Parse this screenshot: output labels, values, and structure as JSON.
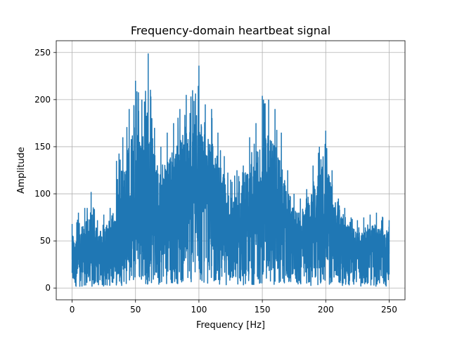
{
  "chart_data": {
    "type": "line",
    "title": "Frequency-domain heartbeat signal",
    "xlabel": "Frequency [Hz]",
    "ylabel": "Amplitude",
    "xlim": [
      -12.5,
      262.5
    ],
    "ylim": [
      -12.5,
      262.5
    ],
    "xticks": [
      0,
      50,
      100,
      150,
      200,
      250
    ],
    "yticks": [
      0,
      50,
      100,
      150,
      200,
      250
    ],
    "grid": true,
    "line_color": "#1f77b4",
    "series": [
      {
        "name": "",
        "x": [
          0,
          5,
          10,
          15,
          20,
          25,
          30,
          35,
          40,
          45,
          50,
          55,
          60,
          65,
          70,
          75,
          80,
          85,
          90,
          95,
          100,
          105,
          110,
          115,
          120,
          125,
          130,
          135,
          140,
          145,
          150,
          155,
          160,
          165,
          170,
          175,
          180,
          185,
          190,
          195,
          200,
          205,
          210,
          215,
          220,
          225,
          230,
          235,
          240,
          245,
          250
        ],
        "peak": [
          68,
          80,
          85,
          102,
          72,
          78,
          85,
          135,
          160,
          190,
          220,
          200,
          249,
          170,
          150,
          165,
          175,
          190,
          205,
          210,
          236,
          195,
          190,
          165,
          140,
          115,
          125,
          130,
          160,
          175,
          204,
          200,
          190,
          165,
          125,
          100,
          95,
          105,
          130,
          150,
          167,
          125,
          95,
          85,
          75,
          72,
          75,
          78,
          80,
          75,
          72
        ],
        "envelope": [
          30,
          30,
          31,
          33,
          34,
          36,
          40,
          46,
          54,
          62,
          68,
          72,
          74,
          75,
          76,
          78,
          80,
          82,
          84,
          86,
          86,
          84,
          80,
          74,
          66,
          58,
          55,
          58,
          64,
          70,
          74,
          72,
          66,
          58,
          50,
          46,
          45,
          48,
          54,
          58,
          58,
          54,
          48,
          42,
          38,
          36,
          35,
          35,
          36,
          36,
          36
        ]
      }
    ]
  }
}
